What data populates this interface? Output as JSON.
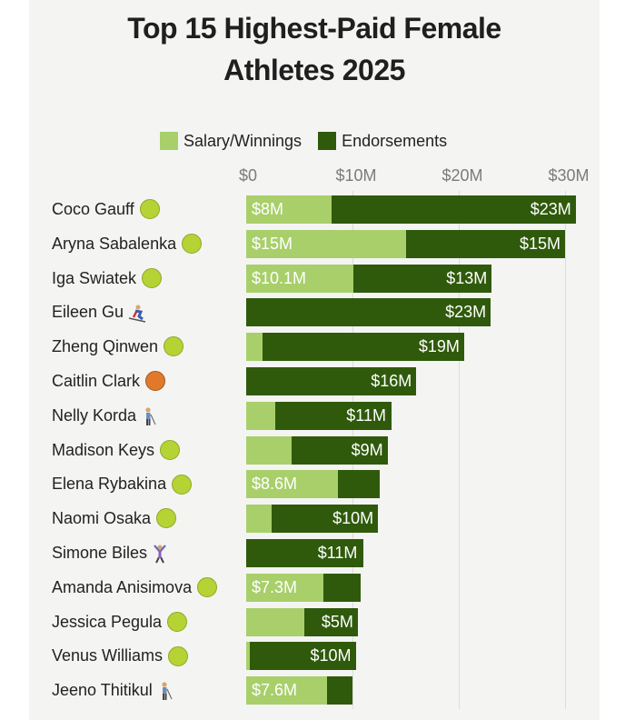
{
  "title_line1": "Top 15 Highest-Paid Female",
  "title_line2": "Athletes 2025",
  "colors": {
    "salary": "#a8cf6a",
    "endorsements": "#2f5a0b"
  },
  "chart_data": {
    "type": "bar",
    "orientation": "horizontal",
    "stacked": true,
    "xlim": [
      0,
      33
    ],
    "legend_position": "top",
    "grid": true,
    "ticks": [
      {
        "value": 0,
        "label": "$0"
      },
      {
        "value": 10,
        "label": "$10M"
      },
      {
        "value": 20,
        "label": "$20M"
      },
      {
        "value": 30,
        "label": "$30M"
      }
    ],
    "series": [
      {
        "name": "Salary/Winnings",
        "color": "#a8cf6a"
      },
      {
        "name": "Endorsements",
        "color": "#2f5a0b"
      }
    ],
    "rows": [
      {
        "name": "Coco Gauff",
        "sport": "tennis",
        "salary": 8,
        "endorsements": 23,
        "salary_label": "$8M",
        "endorsement_label": "$23M"
      },
      {
        "name": "Aryna Sabalenka",
        "sport": "tennis",
        "salary": 15,
        "endorsements": 15,
        "salary_label": "$15M",
        "endorsement_label": "$15M"
      },
      {
        "name": "Iga Swiatek",
        "sport": "tennis",
        "salary": 10.1,
        "endorsements": 13,
        "salary_label": "$10.1M",
        "endorsement_label": "$13M"
      },
      {
        "name": "Eileen Gu",
        "sport": "skiing",
        "salary": 0,
        "endorsements": 23,
        "salary_label": "",
        "endorsement_label": "$23M"
      },
      {
        "name": "Zheng Qinwen",
        "sport": "tennis",
        "salary": 1.5,
        "endorsements": 19,
        "salary_label": "",
        "endorsement_label": "$19M"
      },
      {
        "name": "Caitlin Clark",
        "sport": "basketball",
        "salary": 0,
        "endorsements": 16,
        "salary_label": "",
        "endorsement_label": "$16M"
      },
      {
        "name": "Nelly Korda",
        "sport": "golf",
        "salary": 2.7,
        "endorsements": 11,
        "salary_label": "",
        "endorsement_label": "$11M"
      },
      {
        "name": "Madison Keys",
        "sport": "tennis",
        "salary": 4.3,
        "endorsements": 9,
        "salary_label": "",
        "endorsement_label": "$9M"
      },
      {
        "name": "Elena Rybakina",
        "sport": "tennis",
        "salary": 8.6,
        "endorsements": 4,
        "salary_label": "$8.6M",
        "endorsement_label": ""
      },
      {
        "name": "Naomi Osaka",
        "sport": "tennis",
        "salary": 2.4,
        "endorsements": 10,
        "salary_label": "",
        "endorsement_label": "$10M"
      },
      {
        "name": "Simone Biles",
        "sport": "gymnastics",
        "salary": 0,
        "endorsements": 11,
        "salary_label": "",
        "endorsement_label": "$11M"
      },
      {
        "name": "Amanda Anisimova",
        "sport": "tennis",
        "salary": 7.3,
        "endorsements": 3.5,
        "salary_label": "$7.3M",
        "endorsement_label": ""
      },
      {
        "name": "Jessica Pegula",
        "sport": "tennis",
        "salary": 5.5,
        "endorsements": 5,
        "salary_label": "",
        "endorsement_label": "$5M"
      },
      {
        "name": "Venus Williams",
        "sport": "tennis",
        "salary": 0.3,
        "endorsements": 10,
        "salary_label": "",
        "endorsement_label": "$10M"
      },
      {
        "name": "Jeeno Thitikul",
        "sport": "golf",
        "salary": 7.6,
        "endorsements": 2.4,
        "salary_label": "$7.6M",
        "endorsement_label": ""
      }
    ]
  }
}
